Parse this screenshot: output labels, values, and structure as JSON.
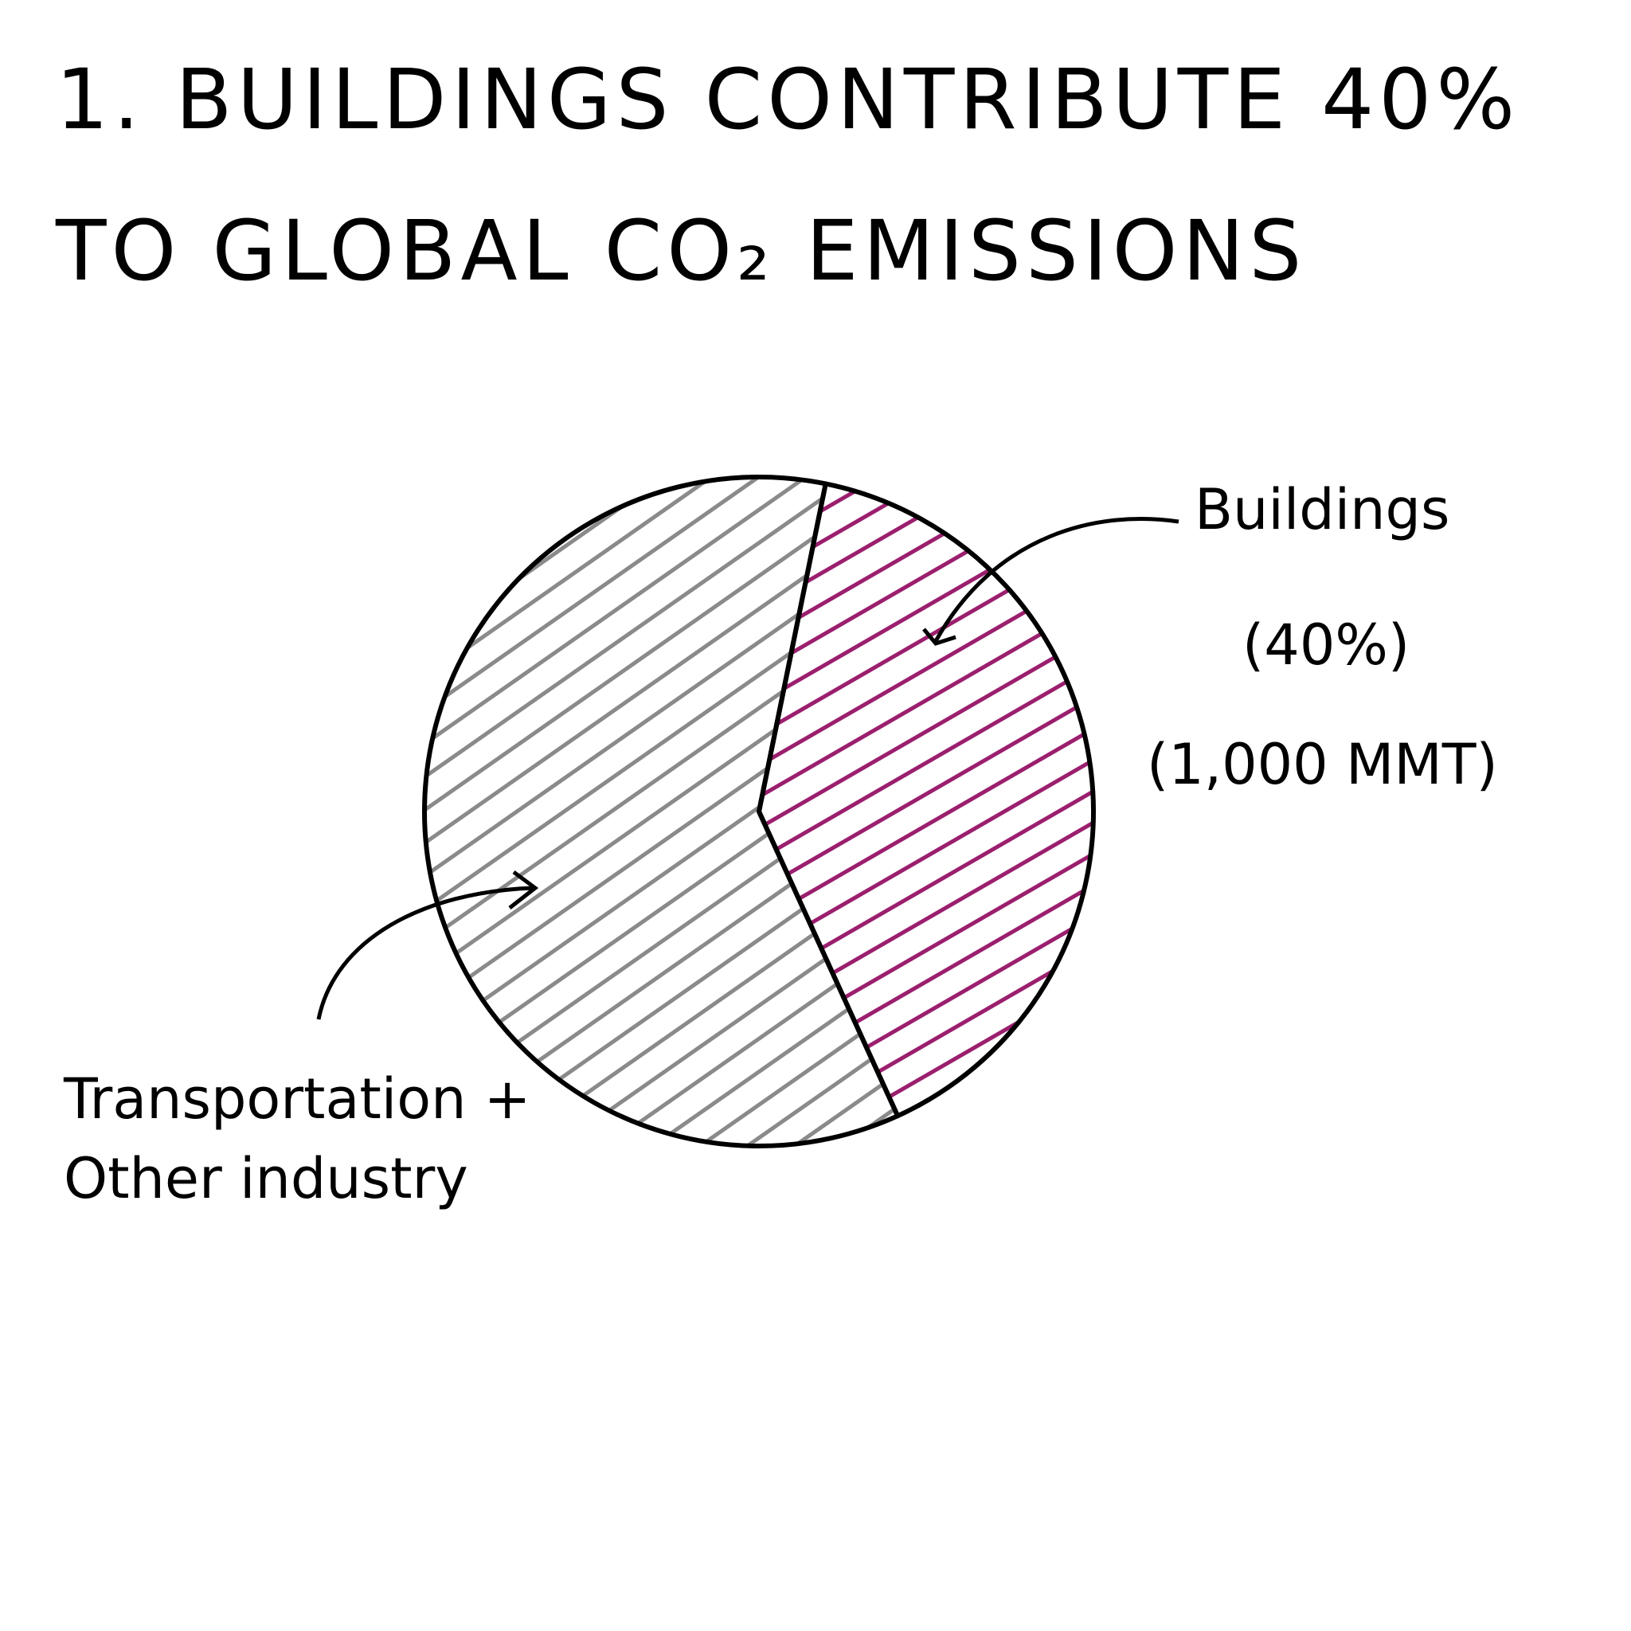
{
  "chart_data": {
    "type": "pie",
    "title": "1. BUILDINGS CONTRIBUTE 40% TO GLOBAL CO₂ EMISSIONS",
    "labels": [
      "Buildings",
      "Transportation + Other industry"
    ],
    "values": [
      40,
      60
    ],
    "value_labels": [
      "(40%)",
      null
    ],
    "annotation": "(1,000 MMT)",
    "colors": [
      "#9b1f6e",
      "#8a8a8a"
    ]
  }
}
